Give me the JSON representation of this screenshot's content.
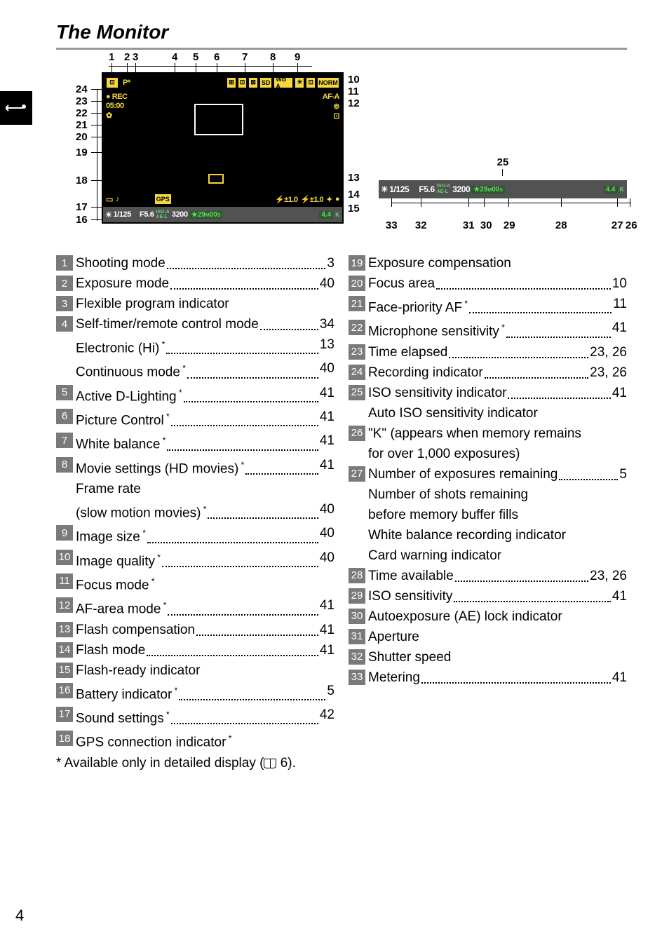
{
  "title": "The Monitor",
  "callouts_top": [
    "1",
    "2",
    "3",
    "4",
    "5",
    "6",
    "7",
    "8",
    "9"
  ],
  "callouts_right": [
    "10",
    "11",
    "12",
    "13",
    "14",
    "15"
  ],
  "callouts_left": [
    "24",
    "23",
    "22",
    "21",
    "20",
    "19",
    "18",
    "17",
    "16"
  ],
  "status_enlarged_top": "25",
  "status_enlarged_bottom": [
    "33",
    "32",
    "31",
    "30",
    "29",
    "28",
    "27",
    "26"
  ],
  "status_bar": {
    "icon": "☀",
    "shutter_pre": "1/",
    "shutter": "125",
    "fstop": "F5.6",
    "iso_label": "ISO-A",
    "ael": "AE-L",
    "iso": "3200",
    "rec": "★29",
    "rec_m": "M",
    "rec_s": "00",
    "rec_unit": "S",
    "right1": "4.4",
    "right2": "K"
  },
  "lcd_icons_row1": [
    "⊡",
    "P*",
    "⊞",
    "⊡",
    "⊠",
    "SD",
    "WB A",
    "☀",
    "⊡",
    "NORM"
  ],
  "lcd_icons_row2_left": [
    "● REC",
    "05:00",
    "✿"
  ],
  "lcd_icons_row2_right": [
    "AF-A",
    "⊚",
    "⊡"
  ],
  "lcd_bottom_row": [
    "▭",
    "♪",
    "GPS",
    "⚡±1.0",
    "⚡±1.0",
    "✦",
    "●"
  ],
  "left_col": [
    {
      "n": "1",
      "label": "Shooting mode",
      "pg": "3"
    },
    {
      "n": "2",
      "label": "Exposure mode",
      "pg": "40"
    },
    {
      "n": "3",
      "label": "Flexible program indicator",
      "pg": ""
    },
    {
      "n": "4",
      "label": "Self-timer/remote control mode",
      "pg": "34"
    },
    {
      "indent": true,
      "label": "Electronic (Hi) *",
      "pg": "13"
    },
    {
      "indent": true,
      "label": "Continuous mode *",
      "pg": "40"
    },
    {
      "n": "5",
      "label": "Active D-Lighting *",
      "pg": "41"
    },
    {
      "n": "6",
      "label": "Picture Control *",
      "pg": "41"
    },
    {
      "n": "7",
      "label": "White balance *",
      "pg": "41"
    },
    {
      "n": "8",
      "label": "Movie settings (HD movies) *",
      "pg": "41"
    },
    {
      "indent": true,
      "label": "Frame rate",
      "pg": ""
    },
    {
      "indent": true,
      "label": " (slow motion movies) *",
      "pg": "40"
    },
    {
      "n": "9",
      "label": "Image size *",
      "pg": "40"
    },
    {
      "n": "10",
      "label": "Image quality *",
      "pg": "40"
    },
    {
      "n": "11",
      "label": "Focus mode *",
      "pg": ""
    },
    {
      "n": "12",
      "label": "AF-area mode *",
      "pg": "41"
    },
    {
      "n": "13",
      "label": "Flash compensation",
      "pg": "41"
    },
    {
      "n": "14",
      "label": "Flash mode",
      "pg": "41"
    },
    {
      "n": "15",
      "label": "Flash-ready indicator",
      "pg": ""
    },
    {
      "n": "16",
      "label": "Battery indicator *",
      "pg": "5"
    },
    {
      "n": "17",
      "label": "Sound settings *",
      "pg": "42"
    },
    {
      "n": "18",
      "label": "GPS connection indicator *",
      "pg": ""
    }
  ],
  "right_col": [
    {
      "n": "19",
      "label": "Exposure compensation",
      "pg": ""
    },
    {
      "n": "20",
      "label": "Focus area",
      "pg": "10"
    },
    {
      "n": "21",
      "label": "Face-priority AF *",
      "pg": "11"
    },
    {
      "n": "22",
      "label": "Microphone sensitivity *",
      "pg": "41"
    },
    {
      "n": "23",
      "label": "Time elapsed",
      "pg": "23, 26"
    },
    {
      "n": "24",
      "label": "Recording indicator",
      "pg": "23, 26"
    },
    {
      "n": "25",
      "label": "ISO sensitivity indicator",
      "pg": "41"
    },
    {
      "indent": true,
      "label": "Auto ISO sensitivity indicator",
      "pg": ""
    },
    {
      "n": "26",
      "label": "\"K\" (appears when memory remains",
      "pg": ""
    },
    {
      "indent": true,
      "label": " for over 1,000 exposures)",
      "pg": ""
    },
    {
      "n": "27",
      "label": "Number of exposures remaining",
      "pg": "5"
    },
    {
      "indent": true,
      "label": "Number of shots remaining",
      "pg": ""
    },
    {
      "indent": true,
      "label": " before memory buffer fills",
      "pg": ""
    },
    {
      "indent": true,
      "label": "White balance recording indicator",
      "pg": ""
    },
    {
      "indent": true,
      "label": "Card warning indicator",
      "pg": ""
    },
    {
      "n": "28",
      "label": "Time available",
      "pg": "23, 26"
    },
    {
      "n": "29",
      "label": "ISO sensitivity",
      "pg": "41"
    },
    {
      "n": "30",
      "label": "Autoexposure (AE) lock indicator",
      "pg": ""
    },
    {
      "n": "31",
      "label": "Aperture",
      "pg": ""
    },
    {
      "n": "32",
      "label": "Shutter speed",
      "pg": ""
    },
    {
      "n": "33",
      "label": "Metering",
      "pg": "41"
    }
  ],
  "footnote_pre": "* Available only in detailed display (",
  "footnote_post": " 6).",
  "page_number": "4"
}
